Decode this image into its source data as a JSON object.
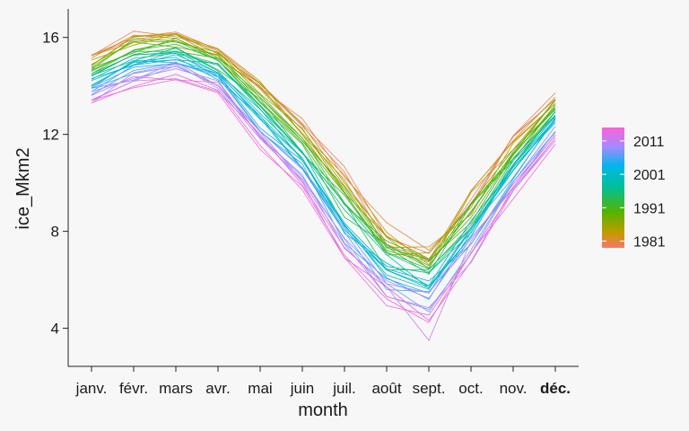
{
  "chart_data": {
    "type": "line",
    "xlabel": "month",
    "ylabel": "ice_Mkm2",
    "categories": [
      "janv.",
      "févr.",
      "mars",
      "avr.",
      "mai",
      "juin",
      "juil.",
      "août",
      "sept.",
      "oct.",
      "nov.",
      "déc."
    ],
    "bold_category": "déc.",
    "yticks": [
      4,
      8,
      12,
      16
    ],
    "ylim": [
      2.8,
      17.1
    ],
    "years": [
      1979,
      2015
    ],
    "grid": false,
    "legend": {
      "position": "right",
      "type": "continuous colorbar",
      "labels": [
        "2011",
        "2001",
        "1991",
        "1981"
      ],
      "label_values": [
        2011,
        2001,
        1991,
        1981
      ]
    },
    "color_scale": {
      "low_year": 1979,
      "high_year": 2015,
      "stops": [
        {
          "at": 0.0,
          "color": "#f8766d"
        },
        {
          "at": 0.12,
          "color": "#c49a00"
        },
        {
          "at": 0.3,
          "color": "#53b400"
        },
        {
          "at": 0.5,
          "color": "#00c094"
        },
        {
          "at": 0.68,
          "color": "#00b6eb"
        },
        {
          "at": 0.84,
          "color": "#a58aff"
        },
        {
          "at": 1.0,
          "color": "#fb61d7"
        }
      ]
    },
    "series_summary": {
      "first_year_values": [
        15.3,
        16.2,
        16.2,
        15.5,
        14.2,
        12.5,
        10.2,
        8.0,
        7.3,
        9.5,
        11.8,
        13.6
      ],
      "last_year_values": [
        13.2,
        14.0,
        14.4,
        13.8,
        11.5,
        9.7,
        7.0,
        5.0,
        4.5,
        6.8,
        9.6,
        11.8
      ],
      "min_value": {
        "month": "sept.",
        "value": 3.5
      }
    }
  }
}
